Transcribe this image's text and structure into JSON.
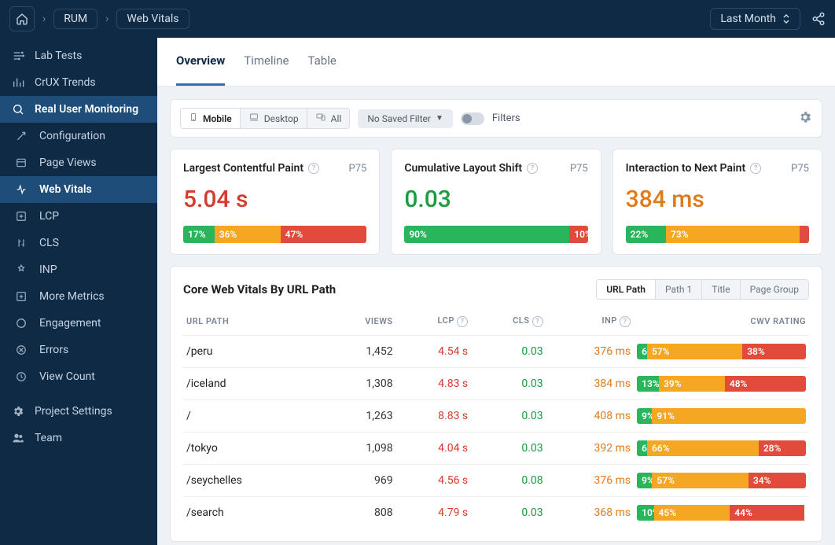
{
  "colors": {
    "good": "#29b55b",
    "ni": "#f5a623",
    "poor": "#e14b3b"
  },
  "topbar": {
    "crumbs": [
      "RUM",
      "Web Vitals"
    ],
    "period": "Last Month"
  },
  "sidebar": {
    "items": [
      {
        "label": "Lab Tests",
        "bold": false,
        "active": false
      },
      {
        "label": "CrUX Trends",
        "bold": false,
        "active": false
      },
      {
        "label": "Real User Monitoring",
        "bold": true,
        "active": true
      }
    ],
    "sub": [
      {
        "label": "Configuration"
      },
      {
        "label": "Page Views"
      },
      {
        "label": "Web Vitals",
        "active": true
      },
      {
        "label": "LCP"
      },
      {
        "label": "CLS"
      },
      {
        "label": "INP"
      },
      {
        "label": "More Metrics"
      },
      {
        "label": "Engagement"
      },
      {
        "label": "Errors"
      },
      {
        "label": "View Count"
      }
    ],
    "bottom": [
      {
        "label": "Project Settings"
      },
      {
        "label": "Team"
      }
    ]
  },
  "tabs": [
    "Overview",
    "Timeline",
    "Table"
  ],
  "activeTab": 0,
  "filterbar": {
    "devices": [
      "Mobile",
      "Desktop",
      "All"
    ],
    "activeDevice": 0,
    "savedFilter": "No Saved Filter",
    "filtersLabel": "Filters"
  },
  "metrics": [
    {
      "title": "Largest Contentful Paint",
      "p": "P75",
      "value": "5.04 s",
      "cls": "val-red",
      "dist": [
        17,
        36,
        47
      ]
    },
    {
      "title": "Cumulative Layout Shift",
      "p": "P75",
      "value": "0.03",
      "cls": "val-green",
      "dist": [
        90,
        0,
        10
      ]
    },
    {
      "title": "Interaction to Next Paint",
      "p": "P75",
      "value": "384 ms",
      "cls": "val-orange",
      "dist": [
        22,
        73,
        5
      ]
    }
  ],
  "table": {
    "title": "Core Web Vitals By URL Path",
    "pills": [
      "URL Path",
      "Path 1",
      "Title",
      "Page Group"
    ],
    "activePill": 0,
    "cols": [
      "URL PATH",
      "VIEWS",
      "LCP",
      "CLS",
      "INP",
      "CWV RATING"
    ],
    "rows": [
      {
        "path": "/peru",
        "views": "1,452",
        "lcp": "4.54 s",
        "cls": "0.03",
        "inp": "376 ms",
        "dist": [
          6,
          57,
          38
        ]
      },
      {
        "path": "/iceland",
        "views": "1,308",
        "lcp": "4.83 s",
        "cls": "0.03",
        "inp": "384 ms",
        "dist": [
          13,
          39,
          48
        ]
      },
      {
        "path": "/",
        "views": "1,263",
        "lcp": "8.83 s",
        "cls": "0.03",
        "inp": "408 ms",
        "dist": [
          9,
          91,
          0
        ]
      },
      {
        "path": "/tokyo",
        "views": "1,098",
        "lcp": "4.04 s",
        "cls": "0.03",
        "inp": "392 ms",
        "dist": [
          6,
          66,
          28
        ]
      },
      {
        "path": "/seychelles",
        "views": "969",
        "lcp": "4.56 s",
        "cls": "0.08",
        "inp": "376 ms",
        "dist": [
          9,
          57,
          34
        ]
      },
      {
        "path": "/search",
        "views": "808",
        "lcp": "4.79 s",
        "cls": "0.03",
        "inp": "368 ms",
        "dist": [
          10,
          45,
          44
        ]
      }
    ]
  }
}
